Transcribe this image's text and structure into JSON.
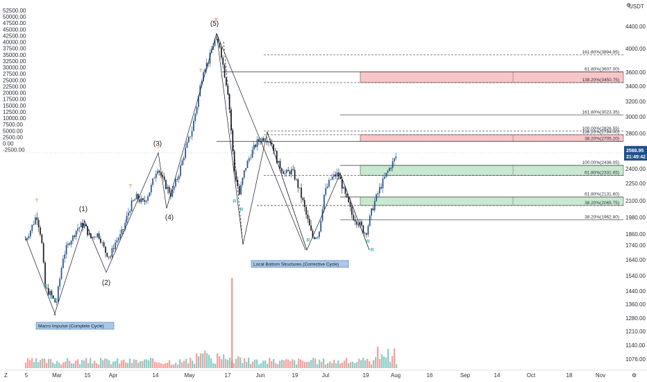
{
  "chart_data": {
    "type": "candlestick",
    "left_axis": {
      "labels": [
        "52500.00",
        "50000.00",
        "47500.00",
        "45000.00",
        "42500.00",
        "40000.00",
        "37500.00",
        "35000.00",
        "32500.00",
        "30000.00",
        "27500.00",
        "25000.00",
        "22500.00",
        "20000.00",
        "17500.00",
        "15000.00",
        "12500.00",
        "10000.00",
        "7500.00",
        "5000.00",
        "2500.00",
        "0.00",
        "-2500.00"
      ],
      "min": -2500,
      "max": 52500
    },
    "right_axis": {
      "currency": "USDT",
      "labels": [
        "4400.00",
        "4000.00",
        "3600.00",
        "3400.00",
        "3200.00",
        "3000.00",
        "2800.00",
        "2600.00",
        "2400.00",
        "2250.00",
        "2100.00",
        "1980.00",
        "1860.00",
        "1740.00",
        "1640.00",
        "1540.00",
        "1440.00",
        "1360.00",
        "1280.00",
        "1210.00",
        "1140.00",
        "1076.00"
      ],
      "last_price": "2568.95",
      "countdown": "21:49:42"
    },
    "x_axis": {
      "labels": [
        "5",
        "Mar",
        "15",
        "Apr",
        "14",
        "May",
        "17",
        "Jun",
        "19",
        "Jul",
        "19",
        "Aug",
        "16",
        "Sep",
        "14",
        "Oct",
        "18",
        "Nov"
      ]
    },
    "fib_levels": [
      {
        "label": "161.80%(3894.95)",
        "price": 3894.95,
        "band": ""
      },
      {
        "label": "61.80%(3607.00)",
        "price": 3607.0,
        "band": "red-top"
      },
      {
        "label": "138.20%(3450.75)",
        "price": 3450.75,
        "band": "red-bottom"
      },
      {
        "label": "161.80%(3023.35)",
        "price": 3023.35,
        "band": ""
      },
      {
        "label": "100.00%(2826.55)",
        "price": 2826.55,
        "band": ""
      },
      {
        "label": "138.20%(2784.00)",
        "price": 2784.0,
        "band": "red-top"
      },
      {
        "label": "38.20%(2705.20)",
        "price": 2705.2,
        "band": "red-bottom"
      },
      {
        "label": "100.00%(2436.05)",
        "price": 2436.05,
        "band": "green-top"
      },
      {
        "label": "61.80%(2331.65)",
        "price": 2331.65,
        "band": "green-bottom"
      },
      {
        "label": "61.80%(2131.60)",
        "price": 2131.6,
        "band": "green-top"
      },
      {
        "label": "38.20%(2065.75)",
        "price": 2065.75,
        "band": "green-bottom"
      },
      {
        "label": "38.20%(1962.80)",
        "price": 1962.8,
        "band": ""
      }
    ],
    "wave_labels": [
      "(1)",
      "(2)",
      "(3)",
      "(4)",
      "(5)"
    ],
    "markers": {
      "top": "T",
      "reversal": "R"
    },
    "annotations": {
      "macro": "Macro Impulse (Complete Cycle)",
      "corrective": "Local Bottom Structures (Corrective Cycle)"
    },
    "colors": {
      "up": "#26a69a",
      "down": "#ef5350",
      "up_dark": "#1e4f8a",
      "red_band": "#f8c6c8",
      "green_band": "#c8e8cf",
      "price_tag": "#1e4f8a"
    }
  },
  "toolbar": {
    "left_btn": "Z",
    "right_btn": "⚙"
  }
}
